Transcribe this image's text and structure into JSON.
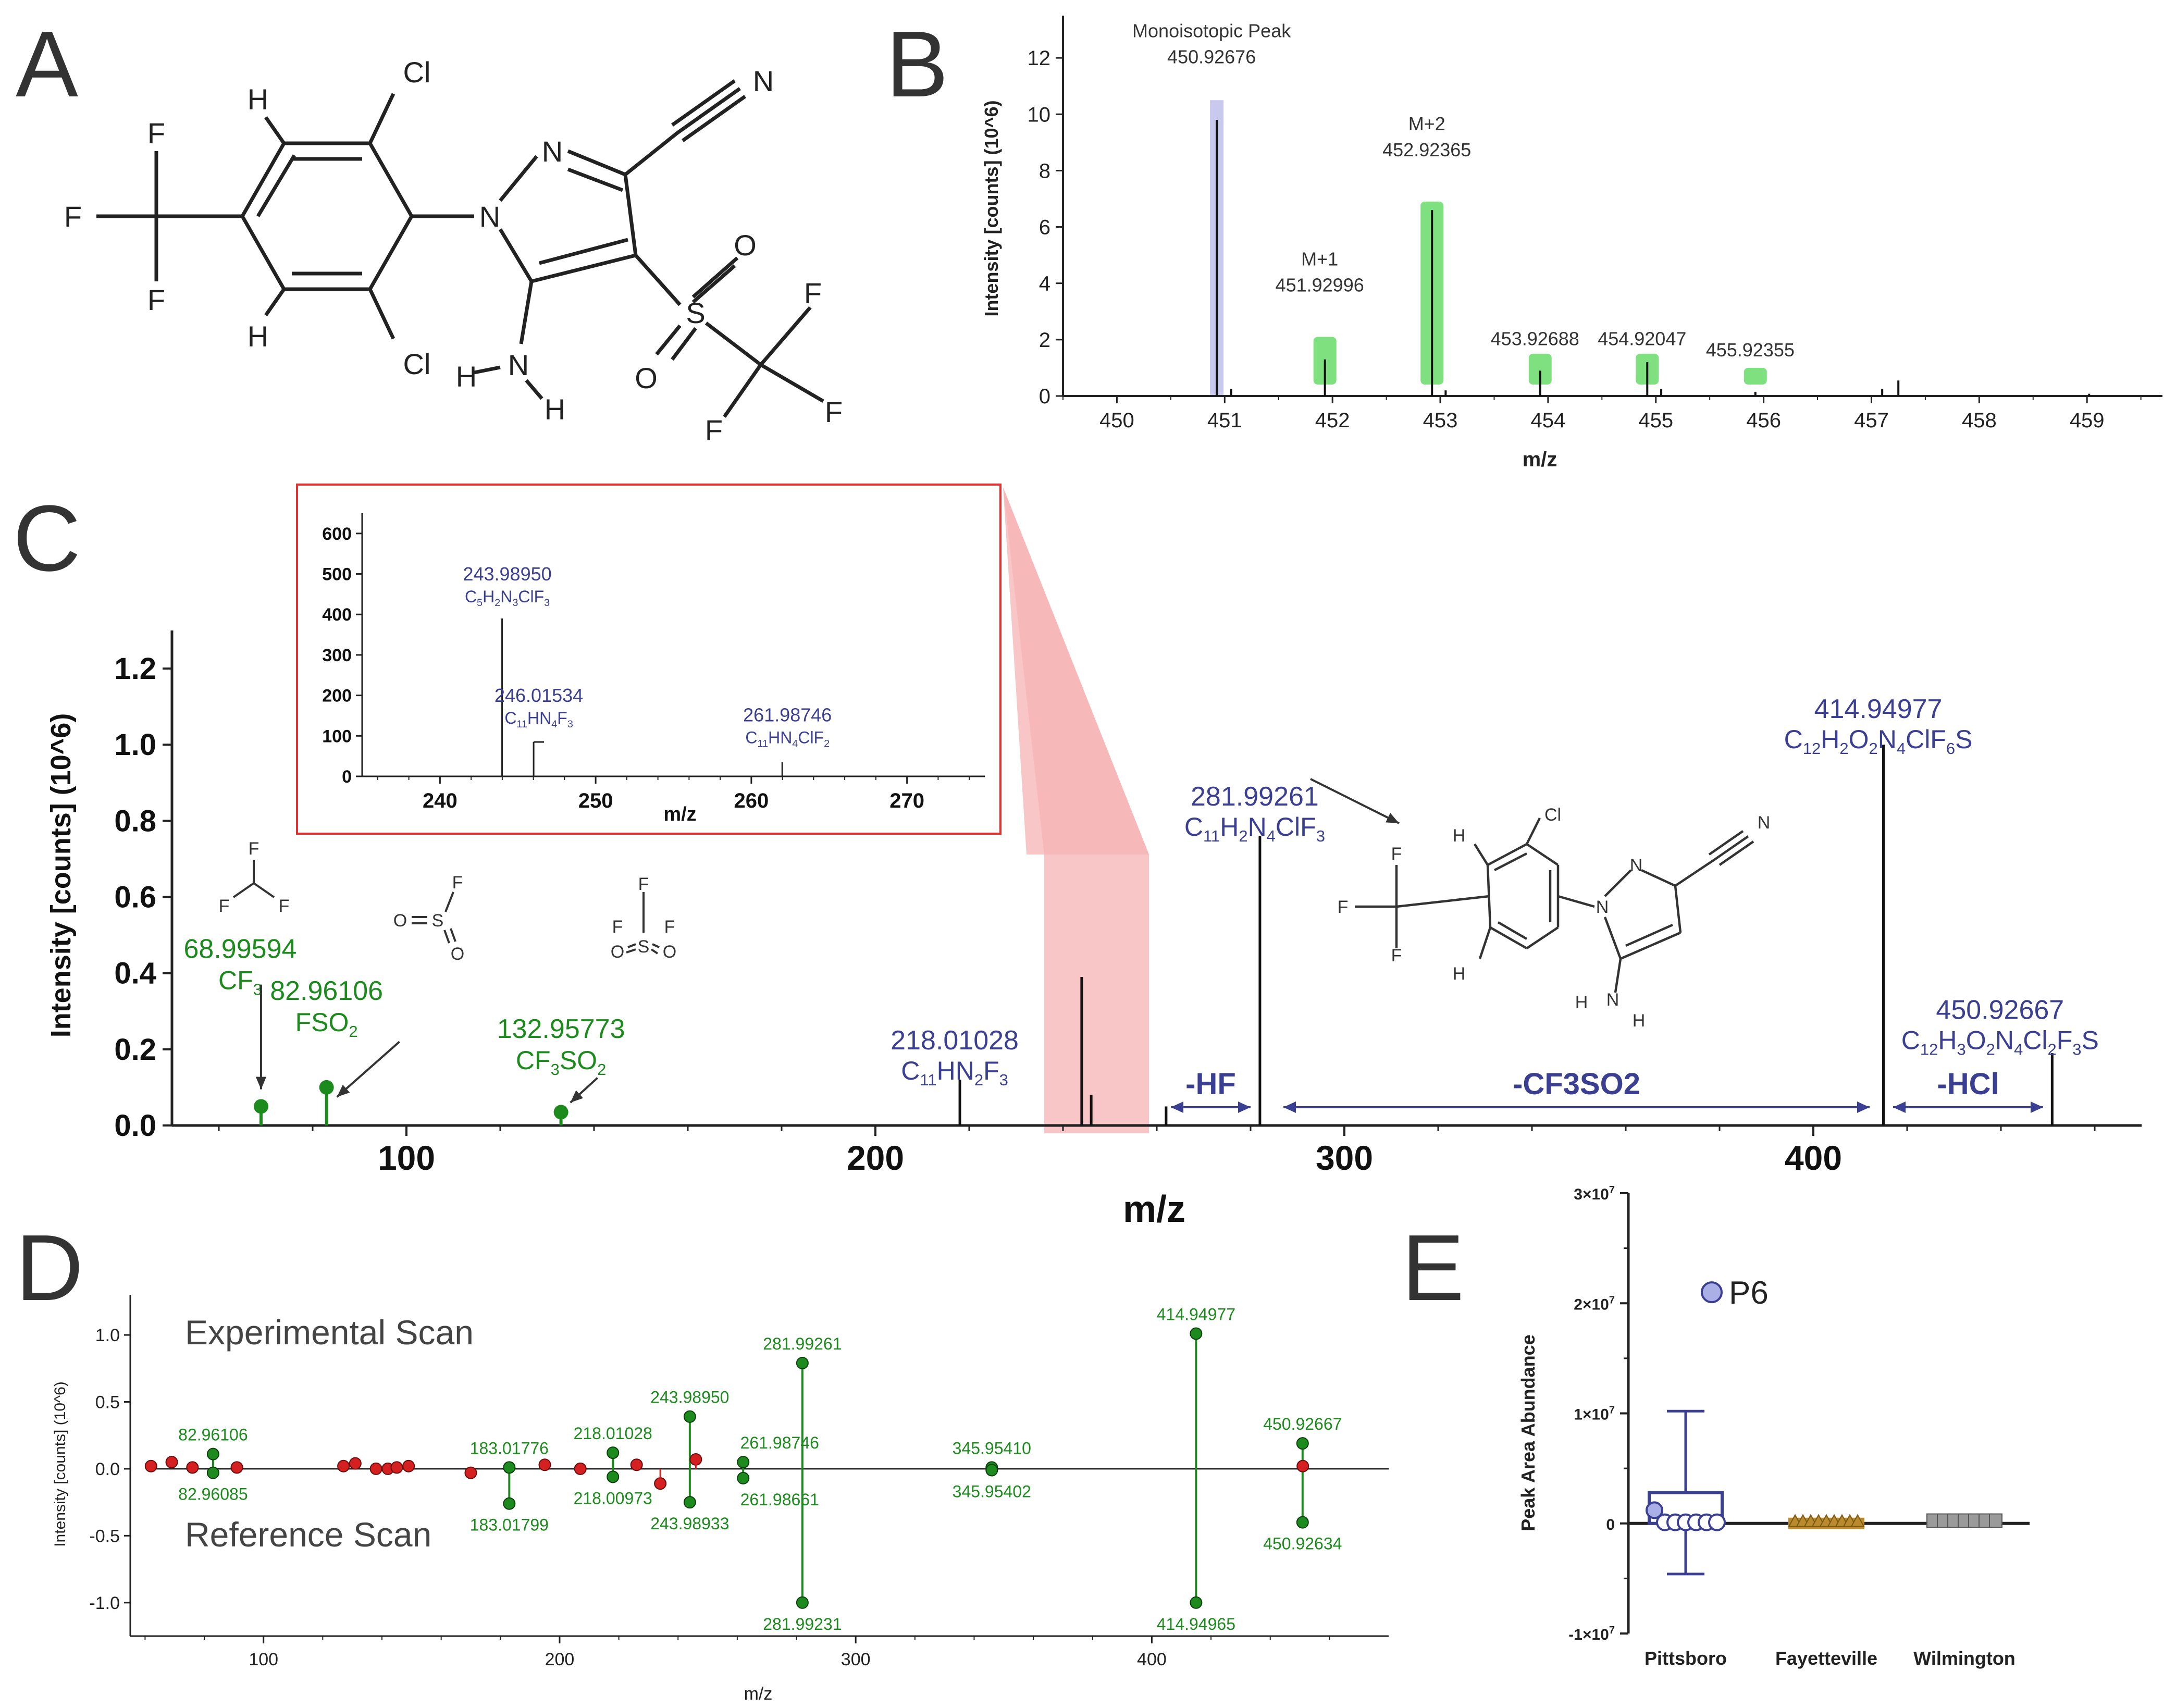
{
  "panels": {
    "a": "A",
    "b": "B",
    "c": "C",
    "d": "D",
    "e": "E"
  },
  "colors": {
    "blue": "#3b3f92",
    "green": "#1d8a1d",
    "red": "#d42020",
    "highlight_green": "#7fe07f",
    "highlight_blue": "#c9c9ef",
    "inset_red": "#e03030",
    "zoom_fill": "#f6b3b3",
    "fayetteville": "#b98a2e",
    "wilmington": "#9a9a9a"
  },
  "molecule_a": {
    "atoms": {
      "cl_top": "Cl",
      "cl_bottom": "Cl",
      "h_top": "H",
      "h_bottom": "H",
      "n_ring": "N",
      "n1": "N",
      "n_cyano": "N",
      "f1": "F",
      "f2": "F",
      "f3": "F",
      "s": "S",
      "o1": "O",
      "o2": "O",
      "f4": "F",
      "f5": "F",
      "f6": "F",
      "h_n1": "H",
      "n_amine": "N",
      "h_n2": "H"
    }
  },
  "molecule_c": {
    "atoms": {
      "cl": "Cl",
      "h1": "H",
      "h2": "H",
      "n1": "N",
      "n2": "N",
      "n_cyano": "N",
      "f1": "F",
      "f2": "F",
      "f3": "F",
      "h_n1": "H",
      "n_amine": "N",
      "h_n2": "H"
    }
  },
  "fragments": {
    "cf3_struct": {
      "f_top": "F",
      "f_left": "F",
      "f_right": "F"
    },
    "fso2_struct": {
      "o": "O",
      "s": "S",
      "f": "F",
      "o2": "O"
    },
    "cf3so2_struct": {
      "f_top": "F",
      "f_left": "F",
      "f_right": "F",
      "o": "O",
      "s": "S",
      "o2": "O"
    }
  },
  "chart_data": [
    {
      "id": "B",
      "type": "bar",
      "xlabel": "m/z",
      "ylabel": "Intensity [counts] (10^6)",
      "xlim": [
        449.5,
        459.7
      ],
      "ylim": [
        0,
        13.5
      ],
      "xticks": [
        450,
        451,
        452,
        453,
        454,
        455,
        456,
        457,
        458,
        459
      ],
      "yticks": [
        0,
        2,
        4,
        6,
        8,
        10,
        12
      ],
      "peaks": [
        {
          "mz": 450.92676,
          "intensity": 9.8
        },
        {
          "mz": 451.06,
          "intensity": 0.25
        },
        {
          "mz": 451.92996,
          "intensity": 1.3
        },
        {
          "mz": 452.92365,
          "intensity": 6.6
        },
        {
          "mz": 453.05,
          "intensity": 0.2
        },
        {
          "mz": 453.92688,
          "intensity": 0.9
        },
        {
          "mz": 454.92047,
          "intensity": 1.2
        },
        {
          "mz": 455.05,
          "intensity": 0.25
        },
        {
          "mz": 455.92355,
          "intensity": 0.15
        },
        {
          "mz": 457.1,
          "intensity": 0.25
        },
        {
          "mz": 457.25,
          "intensity": 0.55
        },
        {
          "mz": 459.02,
          "intensity": 0.08
        }
      ],
      "highlights": [
        {
          "mz": 450.92676,
          "color": "blue",
          "height": 10.5
        },
        {
          "mz": 451.92996,
          "color": "green",
          "height": 2.1
        },
        {
          "mz": 452.92365,
          "color": "green",
          "height": 6.9
        },
        {
          "mz": 453.92688,
          "color": "green",
          "height": 1.5
        },
        {
          "mz": 454.92047,
          "color": "green",
          "height": 1.5
        },
        {
          "mz": 455.92355,
          "color": "green",
          "height": 1.0
        }
      ],
      "annotations": [
        {
          "mz": 450.92676,
          "y": 11.9,
          "line1": "Monoisotopic Peak",
          "line2": "450.92676"
        },
        {
          "mz": 451.92996,
          "y": 3.8,
          "line1": "M+1",
          "line2": "451.92996"
        },
        {
          "mz": 452.92365,
          "y": 8.6,
          "line1": "M+2",
          "line2": "452.92365"
        },
        {
          "mz": 453.92688,
          "y": 1.9,
          "line1": "",
          "line2": "453.92688"
        },
        {
          "mz": 454.92047,
          "y": 1.9,
          "line1": "",
          "line2": "454.92047"
        },
        {
          "mz": 455.92355,
          "y": 1.5,
          "line1": "",
          "line2": "455.92355"
        }
      ]
    },
    {
      "id": "C",
      "type": "bar",
      "xlabel": "m/z",
      "ylabel": "Intensity [counts] (10^6)",
      "xlim": [
        50,
        470
      ],
      "ylim": [
        0,
        1.3
      ],
      "xticks": [
        100,
        200,
        300,
        400
      ],
      "yticks": [
        "0.0",
        "0.2",
        "0.4",
        "0.6",
        "0.8",
        "1.0",
        "1.2"
      ],
      "peaks": [
        {
          "mz": 218.01028,
          "intensity": 0.12
        },
        {
          "mz": 243.9895,
          "intensity": 0.39
        },
        {
          "mz": 246.01534,
          "intensity": 0.08
        },
        {
          "mz": 261.98746,
          "intensity": 0.05
        },
        {
          "mz": 281.99261,
          "intensity": 0.76
        },
        {
          "mz": 414.94977,
          "intensity": 1.0
        },
        {
          "mz": 450.92667,
          "intensity": 0.19
        }
      ],
      "green_stems": [
        {
          "mz": 68.99594,
          "intensity": 0.05
        },
        {
          "mz": 82.96106,
          "intensity": 0.1
        },
        {
          "mz": 132.95773,
          "intensity": 0.035
        }
      ],
      "labels": [
        {
          "mz": 68.99594,
          "y": 0.44,
          "mass": "68.99594",
          "formula": "CF",
          "sub": "3"
        },
        {
          "mz": 82.96106,
          "y": 0.33,
          "mass": "82.96106",
          "formula": "FSO",
          "sub": "2"
        },
        {
          "mz": 132.95773,
          "y": 0.23,
          "mass": "132.95773",
          "formula": "CF",
          "sub": "3",
          "tail": "SO",
          "sub2": "2"
        }
      ],
      "blue_labels": [
        {
          "mz": 218.01028,
          "y": 0.2,
          "mass": "218.01028",
          "parts": [
            "C",
            "11",
            "HN",
            "2",
            "F",
            "3"
          ]
        },
        {
          "mz": 281.99261,
          "y": 0.84,
          "mass": "281.99261",
          "parts": [
            "C",
            "11",
            "H",
            "2",
            "N",
            "4",
            "ClF",
            "3"
          ]
        },
        {
          "mz": 414.94977,
          "y": 1.07,
          "mass": "414.94977",
          "parts": [
            "C",
            "12",
            "H",
            "2",
            "O",
            "2",
            "N",
            "4",
            "ClF",
            "6",
            "S"
          ]
        },
        {
          "mz": 450.92667,
          "y": 0.28,
          "mass": "450.92667",
          "parts": [
            "C",
            "12",
            "H",
            "3",
            "O",
            "2",
            "N",
            "4",
            "Cl",
            "2",
            "F",
            "3",
            "S"
          ]
        }
      ],
      "losses": [
        {
          "from": 263,
          "to": 280,
          "label": "-HF"
        },
        {
          "from": 287,
          "to": 412,
          "label": "-CF3SO2"
        },
        {
          "from": 417,
          "to": 449,
          "label": "-HCl"
        }
      ],
      "zoom_range": [
        236,
        263
      ]
    },
    {
      "id": "C-inset",
      "type": "bar",
      "xlabel": "m/z",
      "xlim": [
        235,
        275
      ],
      "ylim": [
        0,
        650
      ],
      "xticks": [
        240,
        250,
        260,
        270
      ],
      "yticks": [
        0,
        100,
        200,
        300,
        400,
        500,
        600
      ],
      "peaks": [
        {
          "mz": 243.9895,
          "intensity": 390
        },
        {
          "mz": 246.01534,
          "intensity": 85
        },
        {
          "mz": 261.98746,
          "intensity": 35
        }
      ],
      "labels": [
        {
          "mz": 243.9895,
          "y": 430,
          "mass": "243.98950",
          "parts": [
            "C",
            "5",
            "H",
            "2",
            "N",
            "3",
            "ClF",
            "3"
          ]
        },
        {
          "mz": 246.01534,
          "y": 130,
          "mass": "246.01534",
          "parts": [
            "C",
            "11",
            "HN",
            "4",
            "F",
            "3"
          ]
        },
        {
          "mz": 261.98746,
          "y": 82,
          "mass": "261.98746",
          "parts": [
            "C",
            "11",
            "HN",
            "4",
            "ClF",
            "2"
          ]
        }
      ]
    },
    {
      "id": "D",
      "type": "mirror",
      "xlabel": "m/z",
      "ylabel": "Intensity [counts] (10^6)",
      "xlim": [
        55,
        480
      ],
      "ylim": [
        -1.25,
        1.3
      ],
      "xticks": [
        100,
        200,
        300,
        400
      ],
      "yticks": [
        "1.0",
        "0.5",
        "0.0",
        "-0.5",
        "-1.0"
      ],
      "ytick_values": [
        1.0,
        0.5,
        0.0,
        -0.5,
        -1.0
      ],
      "top_label": "Experimental Scan",
      "bottom_label": "Reference Scan",
      "red_points": [
        [
          62,
          0.02
        ],
        [
          69,
          0.05
        ],
        [
          76,
          0.01
        ],
        [
          91,
          0.01
        ],
        [
          127,
          0.02
        ],
        [
          131,
          0.04
        ],
        [
          138,
          0.0
        ],
        [
          142,
          0.0
        ],
        [
          145,
          0.01
        ],
        [
          149,
          0.02
        ],
        [
          170,
          -0.03
        ],
        [
          195,
          0.03
        ],
        [
          207,
          0.0
        ],
        [
          226,
          0.03
        ],
        [
          234,
          -0.11
        ],
        [
          246,
          0.07
        ],
        [
          451,
          0.02
        ]
      ],
      "matched": [
        {
          "mz": 82.96,
          "top": 0.11,
          "bottom": -0.03,
          "top_label": "82.96106",
          "bottom_label": "82.96085"
        },
        {
          "mz": 183.0,
          "top": 0.01,
          "bottom": -0.26,
          "top_label": "183.01776",
          "bottom_label": "183.01799"
        },
        {
          "mz": 218.0,
          "top": 0.12,
          "bottom": -0.06,
          "top_label": "218.01028",
          "bottom_label": "218.00973"
        },
        {
          "mz": 243.98,
          "top": 0.39,
          "bottom": -0.25,
          "top_label": "243.98950",
          "bottom_label": "243.98933"
        },
        {
          "mz": 262.0,
          "top": 0.05,
          "bottom": -0.07,
          "top_label": "261.98746",
          "bottom_label": "261.98661"
        },
        {
          "mz": 282.0,
          "top": 0.79,
          "bottom": -1.0,
          "top_label": "281.99261",
          "bottom_label": "281.99231"
        },
        {
          "mz": 345.95,
          "top": 0.01,
          "bottom": -0.01,
          "top_label": "345.95410",
          "bottom_label": "345.95402"
        },
        {
          "mz": 414.95,
          "top": 1.01,
          "bottom": -1.0,
          "top_label": "414.94977",
          "bottom_label": "414.94965"
        },
        {
          "mz": 450.93,
          "top": 0.19,
          "bottom": -0.4,
          "top_label": "450.92667",
          "bottom_label": "450.92634"
        }
      ]
    },
    {
      "id": "E",
      "type": "scatter",
      "ylabel": "Peak Area Abundance",
      "ylim": [
        -10000000.0,
        30000000.0
      ],
      "ytick_labels": [
        {
          "value": 30000000.0,
          "mant": "3×10",
          "exp": "7"
        },
        {
          "value": 20000000.0,
          "mant": "2×10",
          "exp": "7"
        },
        {
          "value": 10000000.0,
          "mant": "1×10",
          "exp": "7"
        },
        {
          "value": 0,
          "mant": "0",
          "exp": ""
        },
        {
          "value": -10000000.0,
          "mant": "-1×10",
          "exp": "7"
        }
      ],
      "categories": [
        "Pittsboro",
        "Fayetteville",
        "Wilmington"
      ],
      "bars": [
        {
          "category": "Pittsboro",
          "mean": 2800000.0,
          "err_top": 10200000.0,
          "err_bottom": -4600000.0
        },
        {
          "category": "Fayetteville",
          "mean": 150000.0,
          "err_top": 150000.0,
          "err_bottom": 150000.0
        },
        {
          "category": "Wilmington",
          "mean": 600000.0,
          "err_top": 600000.0,
          "err_bottom": 600000.0
        }
      ],
      "outlier": {
        "category": "Pittsboro",
        "value": 21000000.0,
        "label": "P6"
      },
      "points_pittsboro": [
        1200000.0,
        100000.0,
        100000.0,
        100000.0,
        100000.0,
        100000.0,
        100000.0
      ],
      "points_fayetteville": [
        100000.0,
        100000.0,
        100000.0,
        100000.0,
        100000.0,
        100000.0,
        100000.0,
        100000.0,
        100000.0
      ],
      "points_wilmington": [
        200000.0,
        200000.0,
        200000.0,
        200000.0,
        200000.0,
        200000.0,
        200000.0
      ]
    }
  ]
}
